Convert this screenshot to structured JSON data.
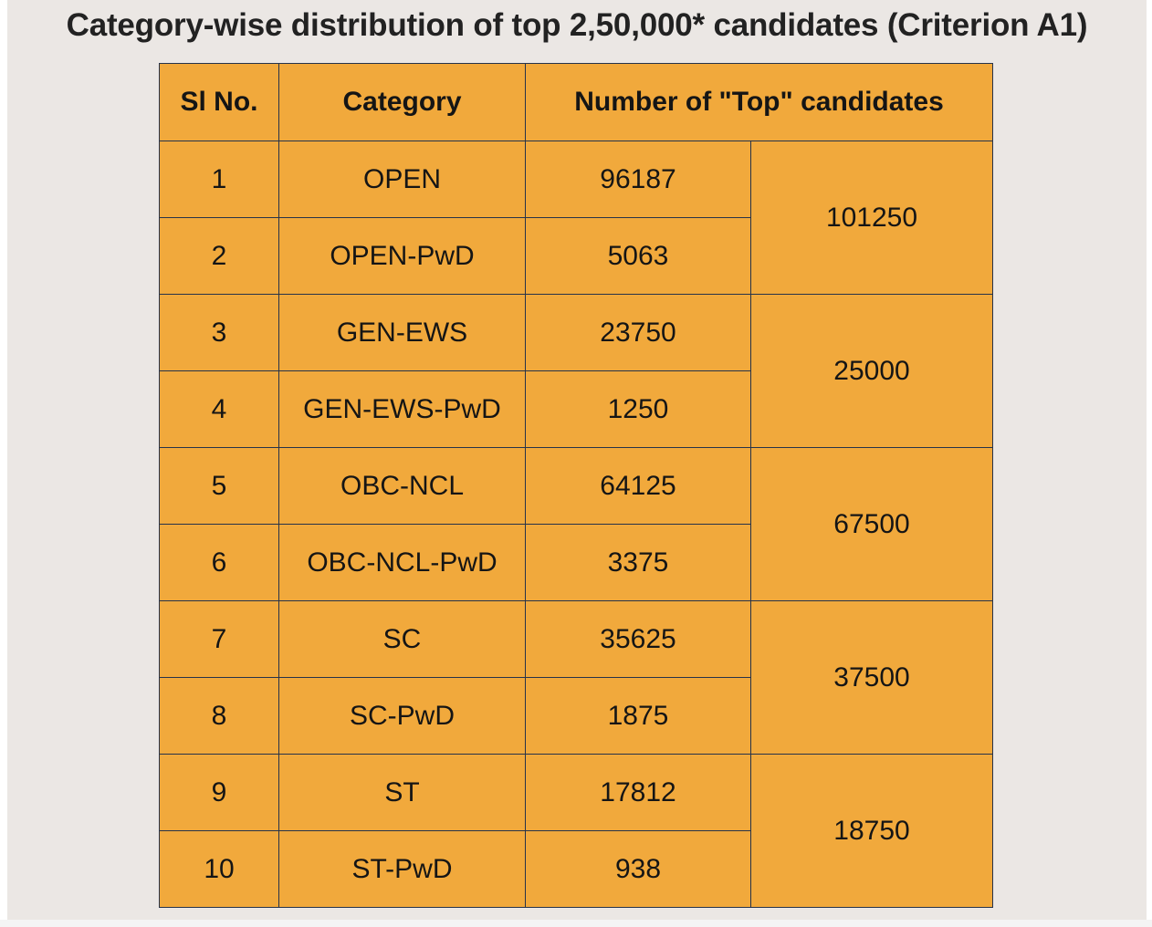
{
  "title": "Category-wise distribution of top 2,50,000* candidates (Criterion A1)",
  "table": {
    "headers": {
      "sl_no": "Sl No.",
      "category": "Category",
      "top_candidates": "Number of \"Top\" candidates"
    },
    "rows": [
      {
        "sl": "1",
        "category": "OPEN",
        "count": "96187"
      },
      {
        "sl": "2",
        "category": "OPEN-PwD",
        "count": "5063"
      },
      {
        "sl": "3",
        "category": "GEN-EWS",
        "count": "23750"
      },
      {
        "sl": "4",
        "category": "GEN-EWS-PwD",
        "count": "1250"
      },
      {
        "sl": "5",
        "category": "OBC-NCL",
        "count": "64125"
      },
      {
        "sl": "6",
        "category": "OBC-NCL-PwD",
        "count": "3375"
      },
      {
        "sl": "7",
        "category": "SC",
        "count": "35625"
      },
      {
        "sl": "8",
        "category": "SC-PwD",
        "count": "1875"
      },
      {
        "sl": "9",
        "category": "ST",
        "count": "17812"
      },
      {
        "sl": "10",
        "category": "ST-PwD",
        "count": "938"
      }
    ],
    "group_totals": [
      "101250",
      "25000",
      "67500",
      "37500",
      "18750"
    ]
  },
  "colors": {
    "cell_fill": "#f1a93c",
    "border": "#26334a",
    "background": "#ebe7e4"
  }
}
